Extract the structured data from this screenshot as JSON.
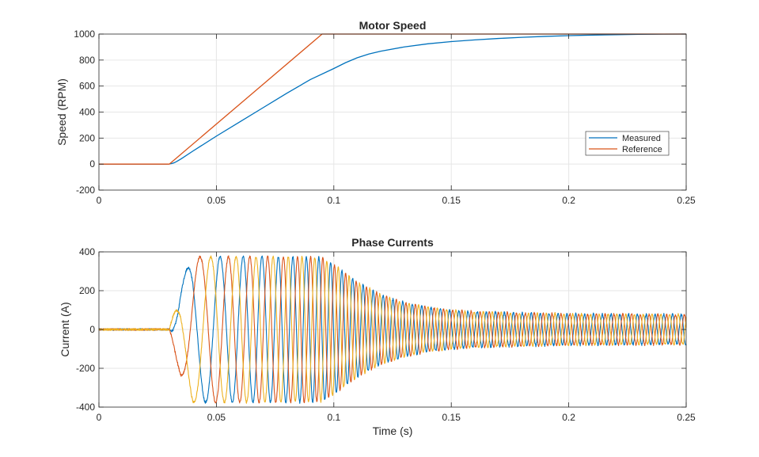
{
  "colors": {
    "blue": "#0072BD",
    "orange": "#D95319",
    "yellow": "#EDB120",
    "grid": "#e6e6e6",
    "axis": "#262626"
  },
  "chart_data": [
    {
      "type": "line",
      "title": "Motor Speed",
      "xlabel": "",
      "ylabel": "Speed (RPM)",
      "xlim": [
        0,
        0.25
      ],
      "ylim": [
        -200,
        1000
      ],
      "xticks": [
        0,
        0.05,
        0.1,
        0.15,
        0.2,
        0.25
      ],
      "xtick_labels": [
        "0",
        "0.05",
        "0.1",
        "0.15",
        "0.2",
        "0.25"
      ],
      "yticks": [
        -200,
        0,
        200,
        400,
        600,
        800,
        1000
      ],
      "ytick_labels": [
        "-200",
        "0",
        "200",
        "400",
        "600",
        "800",
        "1000"
      ],
      "grid": true,
      "legend": {
        "location": "right",
        "entries": [
          "Measured",
          "Reference"
        ]
      },
      "series": [
        {
          "name": "Measured",
          "color": "#0072BD",
          "x": [
            0,
            0.029,
            0.03,
            0.031,
            0.032,
            0.033,
            0.035,
            0.04,
            0.05,
            0.06,
            0.07,
            0.08,
            0.09,
            0.1,
            0.105,
            0.11,
            0.115,
            0.12,
            0.13,
            0.14,
            0.15,
            0.16,
            0.17,
            0.18,
            0.19,
            0.2,
            0.21,
            0.22,
            0.23,
            0.24,
            0.25
          ],
          "y": [
            0,
            0,
            1,
            4,
            10,
            19,
            40,
            100,
            215,
            325,
            435,
            545,
            650,
            735,
            780,
            818,
            847,
            868,
            901,
            925,
            942,
            955,
            966,
            975,
            982,
            988,
            992,
            995,
            998,
            999,
            1000
          ]
        },
        {
          "name": "Reference",
          "color": "#D95319",
          "x": [
            0,
            0.03,
            0.095,
            0.25
          ],
          "y": [
            0,
            0,
            1000,
            1000
          ]
        }
      ]
    },
    {
      "type": "line",
      "title": "Phase Currents",
      "xlabel": "Time (s)",
      "ylabel": "Current (A)",
      "xlim": [
        0,
        0.25
      ],
      "ylim": [
        -400,
        400
      ],
      "xticks": [
        0,
        0.05,
        0.1,
        0.15,
        0.2,
        0.25
      ],
      "xtick_labels": [
        "0",
        "0.05",
        "0.1",
        "0.15",
        "0.2",
        "0.25"
      ],
      "yticks": [
        -400,
        -200,
        0,
        200,
        400
      ],
      "ytick_labels": [
        "-400",
        "-200",
        "0",
        "200",
        "400"
      ],
      "grid": true,
      "series": [
        {
          "color": "#0072BD",
          "phase_deg": 0
        },
        {
          "color": "#D95319",
          "phase_deg": -120
        },
        {
          "color": "#EDB120",
          "phase_deg": 120
        }
      ],
      "start_time": 0.03,
      "envelope": {
        "t": [
          0.03,
          0.035,
          0.04,
          0.05,
          0.06,
          0.07,
          0.08,
          0.09,
          0.095,
          0.1,
          0.105,
          0.11,
          0.12,
          0.13,
          0.14,
          0.15,
          0.16,
          0.18,
          0.2,
          0.22,
          0.25
        ],
        "amplitude": [
          0,
          250,
          375,
          375,
          375,
          375,
          375,
          375,
          370,
          335,
          290,
          245,
          180,
          140,
          115,
          100,
          92,
          85,
          80,
          78,
          77
        ]
      },
      "electrical_frequency_at_speed_hz": {
        "rpm": [
          0,
          1000
        ],
        "hz": [
          0,
          233
        ]
      }
    }
  ]
}
